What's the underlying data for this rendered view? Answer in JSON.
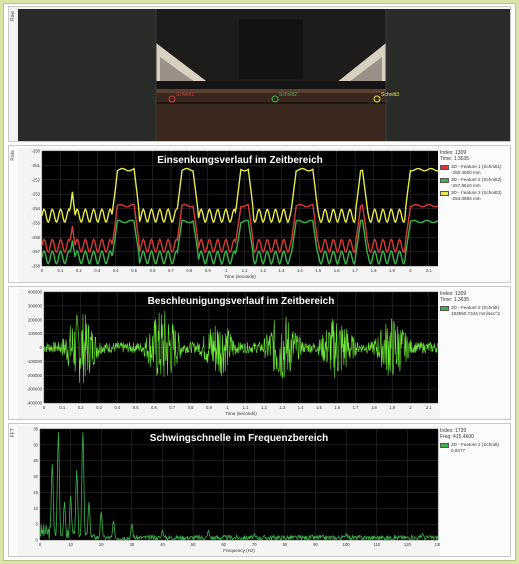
{
  "colors": {
    "background": "#d9e5a6",
    "plot_bg": "#000000",
    "grid": "#3a3a3a",
    "red": "#d83a3a",
    "green": "#39b54a",
    "yellow": "#e8e84a",
    "accel": "#6ee83a"
  },
  "camera": {
    "label": "Raw",
    "markers": [
      {
        "label": "Schnitt1",
        "color": "#d83a3a"
      },
      {
        "label": "Schnitt2",
        "color": "#39b54a"
      },
      {
        "label": "Schnitt3",
        "color": "#e8e84a"
      }
    ]
  },
  "panels": [
    {
      "side_label": "Rate",
      "info": {
        "index": "Index: 1309",
        "time": "Time: 1.3635"
      },
      "legend": [
        {
          "name": "3D - Feature 1 (Schnitt1)",
          "value": "-250.4600 mm",
          "color": "#d83a3a"
        },
        {
          "name": "3D - Feature 2 (Schnitt2)",
          "value": "-257.8610 mm",
          "color": "#39b54a"
        },
        {
          "name": "3D - Feature 3 (Schnitt3)",
          "value": "-254.0983 mm",
          "color": "#e8e84a"
        }
      ]
    },
    {
      "side_label": "",
      "info": {
        "index": "Index: 1309",
        "time": "Time: 1.3635"
      },
      "legend": [
        {
          "name": "2D - Feature 2 (Schnitt)",
          "value": "193550.7344 mm/sec^2",
          "color": "#39b54a"
        }
      ]
    },
    {
      "side_label": "FFT",
      "info": {
        "index": "Index: 1739",
        "time": "Freq: 415.4600"
      },
      "legend": [
        {
          "name": "2D - Feature 2 (Schnitt)",
          "value": "0.8377",
          "color": "#39b54a"
        }
      ]
    }
  ],
  "chart_data": [
    {
      "type": "line",
      "title": "Einsenkungsverlauf im Zeitbereich",
      "xlabel": "Time (seconds)",
      "ylabel": "",
      "xlim": [
        0,
        2.15
      ],
      "ylim": [
        -258,
        -250
      ],
      "x_ticks": [
        "0",
        "0.1",
        "0.2",
        "0.3",
        "0.4",
        "0.5",
        "0.6",
        "0.7",
        "0.8",
        "0.9",
        "1",
        "1.1",
        "1.2",
        "1.3",
        "1.4",
        "1.5",
        "1.6",
        "1.7",
        "1.8",
        "1.9",
        "2",
        "2.1"
      ],
      "y_ticks": [
        "-250",
        "-251",
        "-252",
        "-253",
        "-254",
        "-255",
        "-256",
        "-257",
        "-258"
      ],
      "grid": true,
      "series": [
        {
          "color": "#e8e84a",
          "high": -251.3,
          "low": -254.5
        },
        {
          "color": "#d83a3a",
          "high": -253.8,
          "low": -256.6
        },
        {
          "color": "#39b54a",
          "high": -254.9,
          "low": -257.4
        }
      ],
      "cycle_centers": [
        0.05,
        0.28,
        0.63,
        0.95,
        1.25,
        1.6,
        1.87
      ],
      "cycle_width": 0.2
    },
    {
      "type": "line",
      "title": "Beschleunigungsverlauf im Zeitbereich",
      "xlabel": "Time (seconds)",
      "ylabel": "",
      "xlim": [
        0,
        2.15
      ],
      "ylim": [
        -400000,
        400000
      ],
      "x_ticks": [
        "0",
        "0.1",
        "0.2",
        "0.3",
        "0.4",
        "0.5",
        "0.6",
        "0.7",
        "0.8",
        "0.9",
        "1",
        "1.1",
        "1.2",
        "1.3",
        "1.4",
        "1.5",
        "1.6",
        "1.7",
        "1.8",
        "1.9",
        "2",
        "2.1"
      ],
      "y_ticks": [
        "400000",
        "300000",
        "200000",
        "100000",
        "0",
        "-100000",
        "-200000",
        "-300000",
        "-400000"
      ],
      "grid": true,
      "envelope_peaks": [
        {
          "t": 0.2,
          "amp": 270000
        },
        {
          "t": 0.65,
          "amp": 290000
        },
        {
          "t": 0.95,
          "amp": 220000
        },
        {
          "t": 1.3,
          "amp": 260000
        },
        {
          "t": 1.6,
          "amp": 240000
        },
        {
          "t": 1.9,
          "amp": 230000
        }
      ],
      "baseline_amp": 40000
    },
    {
      "type": "line",
      "title": "Schwingschnelle im Frequenzbereich",
      "xlabel": "Frequency (Hz)",
      "ylabel": "",
      "xlim": [
        0,
        130
      ],
      "ylim": [
        0,
        35
      ],
      "x_ticks": [
        "0",
        "10",
        "20",
        "30",
        "40",
        "50",
        "60",
        "70",
        "80",
        "90",
        "100",
        "110",
        "120",
        "130"
      ],
      "y_ticks": [
        "35",
        "30",
        "25",
        "20",
        "15",
        "10",
        "5",
        "0"
      ],
      "grid": true,
      "peaks": [
        {
          "f": 4,
          "v": 24
        },
        {
          "f": 6,
          "v": 34
        },
        {
          "f": 8,
          "v": 12
        },
        {
          "f": 10,
          "v": 14
        },
        {
          "f": 12,
          "v": 22
        },
        {
          "f": 14,
          "v": 34
        },
        {
          "f": 16,
          "v": 12
        },
        {
          "f": 20,
          "v": 9
        },
        {
          "f": 24,
          "v": 6
        },
        {
          "f": 30,
          "v": 5
        },
        {
          "f": 40,
          "v": 3
        },
        {
          "f": 55,
          "v": 3
        },
        {
          "f": 70,
          "v": 2
        },
        {
          "f": 100,
          "v": 2
        },
        {
          "f": 125,
          "v": 2
        }
      ],
      "noise_level": 1.5
    }
  ]
}
